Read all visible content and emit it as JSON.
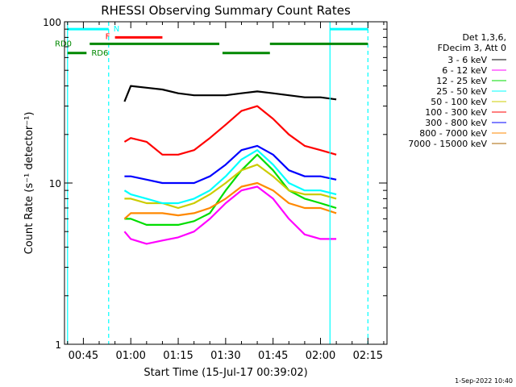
{
  "chart_data": {
    "type": "line",
    "title": "RHESSI Observing Summary Count Rates",
    "xlabel": "Start Time (15-Jul-17 00:39:02)",
    "ylabel": "Count Rate (s⁻¹ detector⁻¹)",
    "y_scale": "log",
    "ylim": [
      1,
      100
    ],
    "xlim_minutes_after_0039": [
      0,
      102
    ],
    "x_ticks": [
      "00:45",
      "01:00",
      "01:15",
      "01:30",
      "01:45",
      "02:00",
      "02:15"
    ],
    "y_ticks": [
      "1",
      "10",
      "100"
    ],
    "grid": false,
    "legend_position": "right",
    "legend_header": [
      "Det 1,3,6,",
      "FDecim 3, Att 0"
    ],
    "series": [
      {
        "name": "3 - 6 keV",
        "color": "#000000",
        "x": [
          "00:58",
          "01:00",
          "01:05",
          "01:10",
          "01:15",
          "01:20",
          "01:25",
          "01:30",
          "01:35",
          "01:40",
          "01:45",
          "01:50",
          "01:55",
          "02:00",
          "02:05"
        ],
        "values": [
          32,
          40,
          39,
          38,
          36,
          35,
          35,
          35,
          36,
          37,
          36,
          35,
          34,
          34,
          33
        ]
      },
      {
        "name": "6 - 12 keV",
        "color": "#ff00ff",
        "x": [
          "00:58",
          "01:00",
          "01:05",
          "01:10",
          "01:15",
          "01:20",
          "01:25",
          "01:30",
          "01:35",
          "01:40",
          "01:45",
          "01:50",
          "01:55",
          "02:00",
          "02:05"
        ],
        "values": [
          5,
          4.5,
          4.2,
          4.4,
          4.6,
          5,
          6,
          7.5,
          9,
          9.5,
          8,
          6,
          4.8,
          4.5,
          4.5
        ]
      },
      {
        "name": "12 - 25 keV",
        "color": "#00dd00",
        "x": [
          "00:58",
          "01:00",
          "01:05",
          "01:10",
          "01:15",
          "01:20",
          "01:25",
          "01:30",
          "01:35",
          "01:40",
          "01:45",
          "01:50",
          "01:55",
          "02:00",
          "02:05"
        ],
        "values": [
          6,
          6,
          5.5,
          5.5,
          5.5,
          5.8,
          6.5,
          9,
          12,
          15,
          12,
          9,
          8,
          7.5,
          7
        ]
      },
      {
        "name": "25 - 50 keV",
        "color": "#00ffff",
        "x": [
          "00:58",
          "01:00",
          "01:05",
          "01:10",
          "01:15",
          "01:20",
          "01:25",
          "01:30",
          "01:35",
          "01:40",
          "01:45",
          "01:50",
          "01:55",
          "02:00",
          "02:05"
        ],
        "values": [
          9,
          8.5,
          8,
          7.5,
          7.5,
          8,
          9,
          11,
          14,
          16,
          13,
          10,
          9,
          9,
          8.5
        ]
      },
      {
        "name": "50 - 100 keV",
        "color": "#cccc00",
        "x": [
          "00:58",
          "01:00",
          "01:05",
          "01:10",
          "01:15",
          "01:20",
          "01:25",
          "01:30",
          "01:35",
          "01:40",
          "01:45",
          "01:50",
          "01:55",
          "02:00",
          "02:05"
        ],
        "values": [
          8,
          8,
          7.5,
          7.5,
          7,
          7.5,
          8.5,
          10,
          12,
          13,
          11,
          9,
          8.5,
          8.5,
          8
        ]
      },
      {
        "name": "100 - 300 keV",
        "color": "#ff0000",
        "x": [
          "00:58",
          "01:00",
          "01:05",
          "01:10",
          "01:15",
          "01:20",
          "01:25",
          "01:30",
          "01:35",
          "01:40",
          "01:45",
          "01:50",
          "01:55",
          "02:00",
          "02:05"
        ],
        "values": [
          18,
          19,
          18,
          15,
          15,
          16,
          19,
          23,
          28,
          30,
          25,
          20,
          17,
          16,
          15
        ]
      },
      {
        "name": "300 - 800 keV",
        "color": "#0000ff",
        "x": [
          "00:58",
          "01:00",
          "01:05",
          "01:10",
          "01:15",
          "01:20",
          "01:25",
          "01:30",
          "01:35",
          "01:40",
          "01:45",
          "01:50",
          "01:55",
          "02:00",
          "02:05"
        ],
        "values": [
          11,
          11,
          10.5,
          10,
          10,
          10,
          11,
          13,
          16,
          17,
          15,
          12,
          11,
          11,
          10.5
        ]
      },
      {
        "name": "800 - 7000 keV",
        "color": "#ff8800",
        "x": [
          "00:58",
          "01:00",
          "01:05",
          "01:10",
          "01:15",
          "01:20",
          "01:25",
          "01:30",
          "01:35",
          "01:40",
          "01:45",
          "01:50",
          "01:55",
          "02:00",
          "02:05"
        ],
        "values": [
          6,
          6.5,
          6.5,
          6.5,
          6.3,
          6.5,
          7,
          8,
          9.5,
          10,
          9,
          7.5,
          7,
          7,
          6.5
        ]
      },
      {
        "name": "7000 - 15000 keV",
        "color": "#aa6600",
        "x": [],
        "values": []
      }
    ],
    "annotations": [
      {
        "label": "N",
        "color": "#00ffff",
        "kind": "bar",
        "y_value": 90,
        "segments": [
          [
            "00:40",
            "00:53"
          ],
          [
            "02:03",
            "02:15"
          ]
        ]
      },
      {
        "label": "F",
        "color": "#ff0000",
        "kind": "bar",
        "y_value": 80,
        "segments": [
          [
            "00:55",
            "01:10"
          ]
        ]
      },
      {
        "label": "RD0",
        "color": "#008800",
        "kind": "bar",
        "y_value": 73,
        "segments": [
          [
            "00:47",
            "01:28"
          ],
          [
            "01:44",
            "02:15"
          ]
        ]
      },
      {
        "label": "RD6",
        "color": "#008800",
        "kind": "bar",
        "y_value": 64,
        "segments": [
          [
            "00:40",
            "00:46"
          ],
          [
            "01:29",
            "01:44"
          ]
        ]
      }
    ],
    "vertical_markers": [
      {
        "time": "00:40",
        "color": "#00ffff",
        "style": "solid"
      },
      {
        "time": "00:53",
        "color": "#00ffff",
        "style": "dashed"
      },
      {
        "time": "02:03",
        "color": "#00ffff",
        "style": "solid"
      },
      {
        "time": "02:15",
        "color": "#00ffff",
        "style": "dashed"
      }
    ]
  },
  "timestamp": "1-Sep-2022 10:40"
}
